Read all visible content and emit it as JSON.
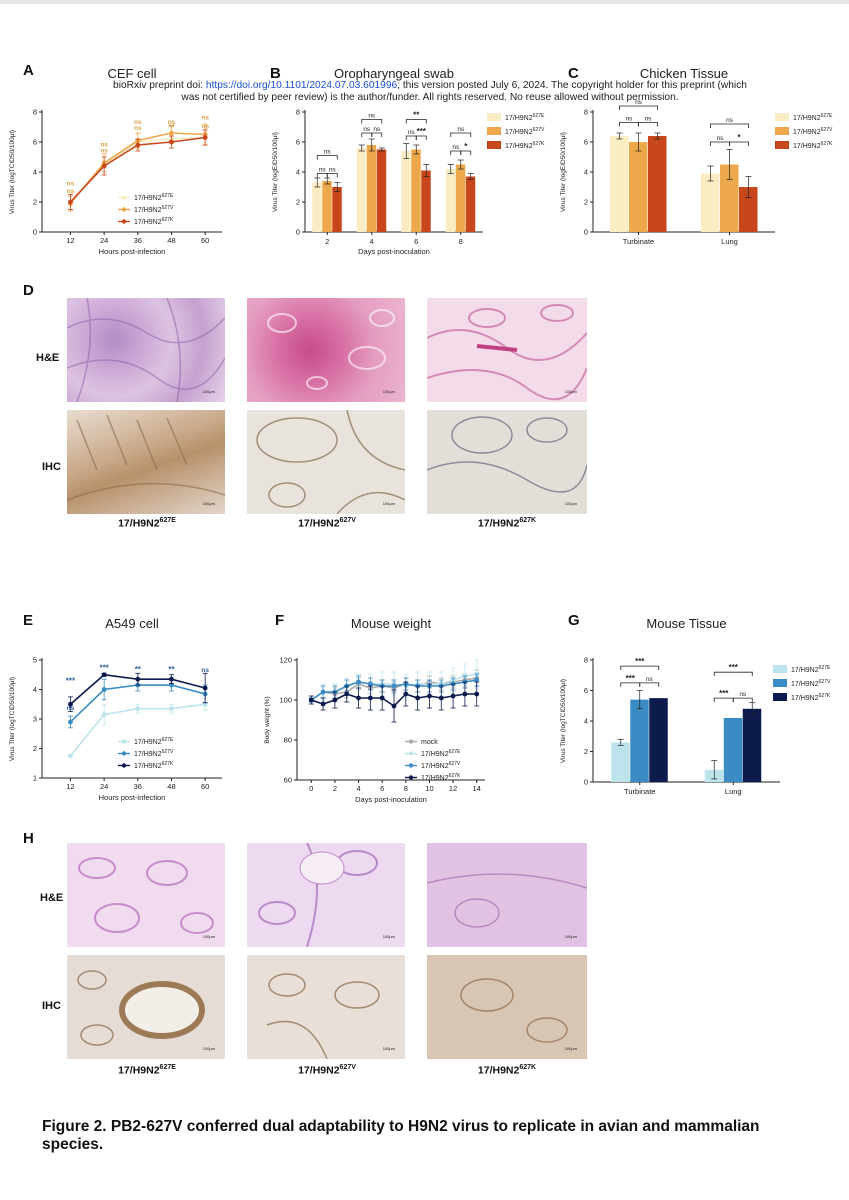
{
  "preprint_notice": {
    "line1_prefix": "bioRxiv preprint doi: ",
    "doi": "https://doi.org/10.1101/2024.07.03.601996",
    "line1_suffix": "; this version posted July 6, 2024. The copyright holder for this preprint (which",
    "line2": "was not certified by peer review) is the author/funder. All rights reserved. No reuse allowed without permission."
  },
  "panel_letters": [
    "A",
    "B",
    "C",
    "D",
    "E",
    "F",
    "G",
    "H"
  ],
  "micro_panels": {
    "row_he": "H&E",
    "row_ihc": "IHC",
    "scale_label": "100μm",
    "D_labels": [
      {
        "base": "17/H9N2",
        "sup": "627E"
      },
      {
        "base": "17/H9N2",
        "sup": "627V"
      },
      {
        "base": "17/H9N2",
        "sup": "627K"
      }
    ],
    "H_labels": [
      {
        "base": "17/H9N2",
        "sup": "627E"
      },
      {
        "base": "17/H9N2",
        "sup": "627V"
      },
      {
        "base": "17/H9N2",
        "sup": "627K"
      }
    ]
  },
  "caption": "Figure 2. PB2-627V conferred dual adaptability to H9N2 virus to replicate in avian and mammalian species.",
  "colors": {
    "avian_E": "#faedc4",
    "avian_V": "#eda84b",
    "avian_K": "#c8461c",
    "mammal_E": "#bde4ec",
    "mammal_V": "#3b8cc4",
    "mammal_K": "#0d1a4c",
    "mock": "#aaaaaa",
    "sig_gold": "#d9a24a",
    "sig_blue": "#2a5a9a"
  },
  "chart_data": [
    {
      "id": "A",
      "type": "line",
      "title": "CEF cell",
      "xlabel": "Hours post-infection",
      "ylabel": "Virus Titer (logTCID50/100μl)",
      "x": [
        12,
        24,
        36,
        48,
        60
      ],
      "xlim": [
        4,
        66
      ],
      "ylim": [
        0,
        8
      ],
      "yticks": [
        0,
        2,
        4,
        6,
        8
      ],
      "series": [
        {
          "name_base": "17/H9N2",
          "name_sup": "627E",
          "color_key": "avian_E",
          "values": [
            2.0,
            4.5,
            6.0,
            6.2,
            6.3
          ],
          "err": [
            0.6,
            0.5,
            0.5,
            0.3,
            0.5
          ]
        },
        {
          "name_base": "17/H9N2",
          "name_sup": "627V",
          "color_key": "avian_V",
          "values": [
            1.9,
            4.6,
            6.1,
            6.6,
            6.5
          ],
          "err": [
            0.5,
            0.6,
            0.5,
            0.5,
            0.7
          ]
        },
        {
          "name_base": "17/H9N2",
          "name_sup": "627K",
          "color_key": "avian_K",
          "values": [
            2.0,
            4.4,
            5.8,
            6.0,
            6.3
          ],
          "err": [
            0.5,
            0.6,
            0.4,
            0.4,
            0.5
          ]
        }
      ],
      "annotations": [
        {
          "x": 12,
          "y": 3.1,
          "text": "ns",
          "color_key": "sig_gold"
        },
        {
          "x": 12,
          "y": 2.6,
          "text": "ns",
          "color_key": "sig_gold"
        },
        {
          "x": 24,
          "y": 5.7,
          "text": "ns",
          "color_key": "sig_gold"
        },
        {
          "x": 24,
          "y": 5.3,
          "text": "ns",
          "color_key": "sig_gold"
        },
        {
          "x": 36,
          "y": 7.2,
          "text": "ns",
          "color_key": "sig_gold"
        },
        {
          "x": 36,
          "y": 6.8,
          "text": "ns",
          "color_key": "sig_gold"
        },
        {
          "x": 48,
          "y": 7.2,
          "text": "ns",
          "color_key": "sig_gold"
        },
        {
          "x": 48,
          "y": 6.8,
          "text": "**",
          "color_key": "sig_gold"
        },
        {
          "x": 60,
          "y": 7.5,
          "text": "ns",
          "color_key": "sig_gold"
        },
        {
          "x": 60,
          "y": 6.9,
          "text": "ns",
          "color_key": "sig_gold"
        }
      ]
    },
    {
      "id": "B",
      "type": "bar",
      "title": "Oropharyngeal swab",
      "xlabel": "Days post-inoculation",
      "ylabel": "Virus Titer (logEID50/100μl)",
      "categories": [
        "2",
        "4",
        "6",
        "8"
      ],
      "ylim": [
        0,
        8
      ],
      "yticks": [
        0,
        2,
        4,
        6,
        8
      ],
      "series": [
        {
          "name_base": "17/H9N2",
          "name_sup": "627E",
          "color_key": "avian_E",
          "values": [
            3.3,
            5.6,
            5.4,
            4.2
          ],
          "err": [
            0.3,
            0.2,
            0.5,
            0.3
          ]
        },
        {
          "name_base": "17/H9N2",
          "name_sup": "627V",
          "color_key": "avian_V",
          "values": [
            3.4,
            5.8,
            5.5,
            4.5
          ],
          "err": [
            0.2,
            0.4,
            0.3,
            0.3
          ]
        },
        {
          "name_base": "17/H9N2",
          "name_sup": "627K",
          "color_key": "avian_K",
          "values": [
            3.0,
            5.5,
            4.1,
            3.7
          ],
          "err": [
            0.3,
            0.1,
            0.4,
            0.2
          ]
        }
      ],
      "brackets": [
        {
          "group": 0,
          "from": 0,
          "to": 1,
          "y": 3.9,
          "text": "ns"
        },
        {
          "group": 0,
          "from": 1,
          "to": 2,
          "y": 3.9,
          "text": "ns"
        },
        {
          "group": 0,
          "from": 0,
          "to": 2,
          "y": 5.1,
          "text": "ns"
        },
        {
          "group": 1,
          "from": 0,
          "to": 1,
          "y": 6.6,
          "text": "ns"
        },
        {
          "group": 1,
          "from": 1,
          "to": 2,
          "y": 6.6,
          "text": "ns"
        },
        {
          "group": 1,
          "from": 0,
          "to": 2,
          "y": 7.5,
          "text": "ns"
        },
        {
          "group": 2,
          "from": 0,
          "to": 1,
          "y": 6.4,
          "text": "ns"
        },
        {
          "group": 2,
          "from": 1,
          "to": 2,
          "y": 6.4,
          "text": "***"
        },
        {
          "group": 2,
          "from": 0,
          "to": 2,
          "y": 7.5,
          "text": "**"
        },
        {
          "group": 3,
          "from": 0,
          "to": 1,
          "y": 5.4,
          "text": "ns"
        },
        {
          "group": 3,
          "from": 1,
          "to": 2,
          "y": 5.4,
          "text": "*"
        },
        {
          "group": 3,
          "from": 0,
          "to": 2,
          "y": 6.6,
          "text": "ns"
        }
      ]
    },
    {
      "id": "C",
      "type": "bar",
      "title": "Chicken Tissue",
      "xlabel": "",
      "ylabel": "Virus Titer (logEID50/100μl)",
      "categories": [
        "Turbinate",
        "Lung"
      ],
      "ylim": [
        0,
        8
      ],
      "yticks": [
        0,
        2,
        4,
        6,
        8
      ],
      "series": [
        {
          "name_base": "17/H9N2",
          "name_sup": "627E",
          "color_key": "avian_E",
          "values": [
            6.4,
            3.9
          ],
          "err": [
            0.2,
            0.5
          ]
        },
        {
          "name_base": "17/H9N2",
          "name_sup": "627V",
          "color_key": "avian_V",
          "values": [
            6.0,
            4.5
          ],
          "err": [
            0.6,
            1.0
          ]
        },
        {
          "name_base": "17/H9N2",
          "name_sup": "627K",
          "color_key": "avian_K",
          "values": [
            6.4,
            3.0
          ],
          "err": [
            0.2,
            0.7
          ]
        }
      ],
      "brackets": [
        {
          "group": 0,
          "from": 0,
          "to": 1,
          "y": 7.3,
          "text": "ns"
        },
        {
          "group": 0,
          "from": 1,
          "to": 2,
          "y": 7.3,
          "text": "ns"
        },
        {
          "group": 0,
          "from": 0,
          "to": 2,
          "y": 8.4,
          "text": "ns"
        },
        {
          "group": 1,
          "from": 0,
          "to": 1,
          "y": 6.0,
          "text": "ns"
        },
        {
          "group": 1,
          "from": 1,
          "to": 2,
          "y": 6.0,
          "text": "*"
        },
        {
          "group": 1,
          "from": 0,
          "to": 2,
          "y": 7.2,
          "text": "ns"
        }
      ]
    },
    {
      "id": "E",
      "type": "line",
      "title": "A549 cell",
      "xlabel": "Hours post-infection",
      "ylabel": "Virus Titer (logTCID50/100μl)",
      "x": [
        12,
        24,
        36,
        48,
        60
      ],
      "xlim": [
        4,
        66
      ],
      "ylim": [
        1,
        5
      ],
      "yticks": [
        1,
        2,
        3,
        4,
        5
      ],
      "series": [
        {
          "name_base": "17/H9N2",
          "name_sup": "627E",
          "color_key": "mammal_E",
          "values": [
            1.75,
            3.15,
            3.35,
            3.35,
            3.5
          ],
          "err": [
            0.0,
            0.35,
            0.15,
            0.15,
            0.2
          ]
        },
        {
          "name_base": "17/H9N2",
          "name_sup": "627V",
          "color_key": "mammal_V",
          "values": [
            2.9,
            4.0,
            4.15,
            4.15,
            3.85
          ],
          "err": [
            0.2,
            0.35,
            0.2,
            0.2,
            0.3
          ]
        },
        {
          "name_base": "17/H9N2",
          "name_sup": "627K",
          "color_key": "mammal_K",
          "values": [
            3.5,
            4.5,
            4.35,
            4.35,
            4.05
          ],
          "err": [
            0.25,
            0.05,
            0.2,
            0.15,
            0.5
          ]
        }
      ],
      "annotations": [
        {
          "x": 12,
          "y": 4.2,
          "text": "***",
          "color_key": "sig_blue"
        },
        {
          "x": 12,
          "y": 3.3,
          "text": "ns",
          "color_key": "sig_blue"
        },
        {
          "x": 24,
          "y": 4.65,
          "text": "***",
          "color_key": "sig_blue"
        },
        {
          "x": 36,
          "y": 4.6,
          "text": "**",
          "color_key": "sig_blue"
        },
        {
          "x": 48,
          "y": 4.6,
          "text": "**",
          "color_key": "sig_blue"
        },
        {
          "x": 60,
          "y": 4.6,
          "text": "ns",
          "color_key": "sig_blue"
        }
      ]
    },
    {
      "id": "F",
      "type": "line",
      "title": "Mouse weight",
      "xlabel": "Days post-inoculation",
      "ylabel": "Body weight (%)",
      "x": [
        0,
        1,
        2,
        3,
        4,
        5,
        6,
        7,
        8,
        9,
        10,
        11,
        12,
        13,
        14
      ],
      "xlim": [
        -0.7,
        14.7
      ],
      "xticks": [
        0,
        2,
        4,
        6,
        8,
        10,
        12,
        14
      ],
      "ylim": [
        60,
        120
      ],
      "yticks": [
        60,
        80,
        100,
        120
      ],
      "series": [
        {
          "name": "mock",
          "color_key": "mock",
          "values": [
            100,
            104,
            103,
            104,
            108,
            106,
            107,
            106,
            108,
            107,
            109,
            108,
            109,
            110,
            111
          ],
          "err": [
            1,
            3,
            3,
            3,
            3,
            3,
            3,
            3,
            3,
            3,
            3,
            3,
            3,
            3,
            4
          ]
        },
        {
          "name_base": "17/H9N2",
          "name_sup": "627E",
          "color_key": "mammal_E",
          "values": [
            100,
            104,
            104,
            107,
            109,
            108,
            108,
            108,
            107,
            108,
            108,
            108,
            110,
            112,
            113
          ],
          "err": [
            2,
            4,
            4,
            4,
            4,
            5,
            6,
            6,
            6,
            6,
            6,
            6,
            6,
            6,
            7
          ]
        },
        {
          "name_base": "17/H9N2",
          "name_sup": "627V",
          "color_key": "mammal_V",
          "values": [
            100,
            104,
            104,
            107,
            109,
            108,
            107,
            107,
            108,
            107,
            107,
            107,
            108,
            109,
            110
          ],
          "err": [
            1,
            3,
            3,
            3,
            3,
            3,
            3,
            3,
            3,
            3,
            3,
            3,
            3,
            3,
            3
          ]
        },
        {
          "name_base": "17/H9N2",
          "name_sup": "627K",
          "color_key": "mammal_K",
          "values": [
            100,
            98,
            100,
            103,
            101,
            101,
            101,
            97,
            103,
            101,
            102,
            101,
            102,
            103,
            103
          ],
          "err": [
            2,
            3,
            4,
            4,
            5,
            6,
            6,
            8,
            6,
            6,
            6,
            6,
            6,
            6,
            6
          ]
        }
      ]
    },
    {
      "id": "G",
      "type": "bar",
      "title": "Mouse Tissue",
      "xlabel": "",
      "ylabel": "Virus Titer (logTCID50/100μl)",
      "categories": [
        "Turbinate",
        "Lung"
      ],
      "ylim": [
        0,
        8
      ],
      "yticks": [
        0,
        2,
        4,
        6,
        8
      ],
      "series": [
        {
          "name_base": "17/H9N2",
          "name_sup": "627E",
          "color_key": "mammal_E",
          "values": [
            2.6,
            0.8
          ],
          "err": [
            0.2,
            0.6
          ]
        },
        {
          "name_base": "17/H9N2",
          "name_sup": "627V",
          "color_key": "mammal_V",
          "values": [
            5.4,
            4.2
          ],
          "err": [
            0.6,
            0.0
          ]
        },
        {
          "name_base": "17/H9N2",
          "name_sup": "627K",
          "color_key": "mammal_K",
          "values": [
            5.5,
            4.8
          ],
          "err": [
            0.0,
            0.4
          ]
        }
      ],
      "brackets": [
        {
          "group": 0,
          "from": 0,
          "to": 1,
          "y": 6.5,
          "text": "***"
        },
        {
          "group": 0,
          "from": 1,
          "to": 2,
          "y": 6.5,
          "text": "ns"
        },
        {
          "group": 0,
          "from": 0,
          "to": 2,
          "y": 7.6,
          "text": "***"
        },
        {
          "group": 1,
          "from": 0,
          "to": 1,
          "y": 5.5,
          "text": "***"
        },
        {
          "group": 1,
          "from": 1,
          "to": 2,
          "y": 5.5,
          "text": "ns"
        },
        {
          "group": 1,
          "from": 0,
          "to": 2,
          "y": 7.2,
          "text": "***"
        }
      ]
    }
  ]
}
